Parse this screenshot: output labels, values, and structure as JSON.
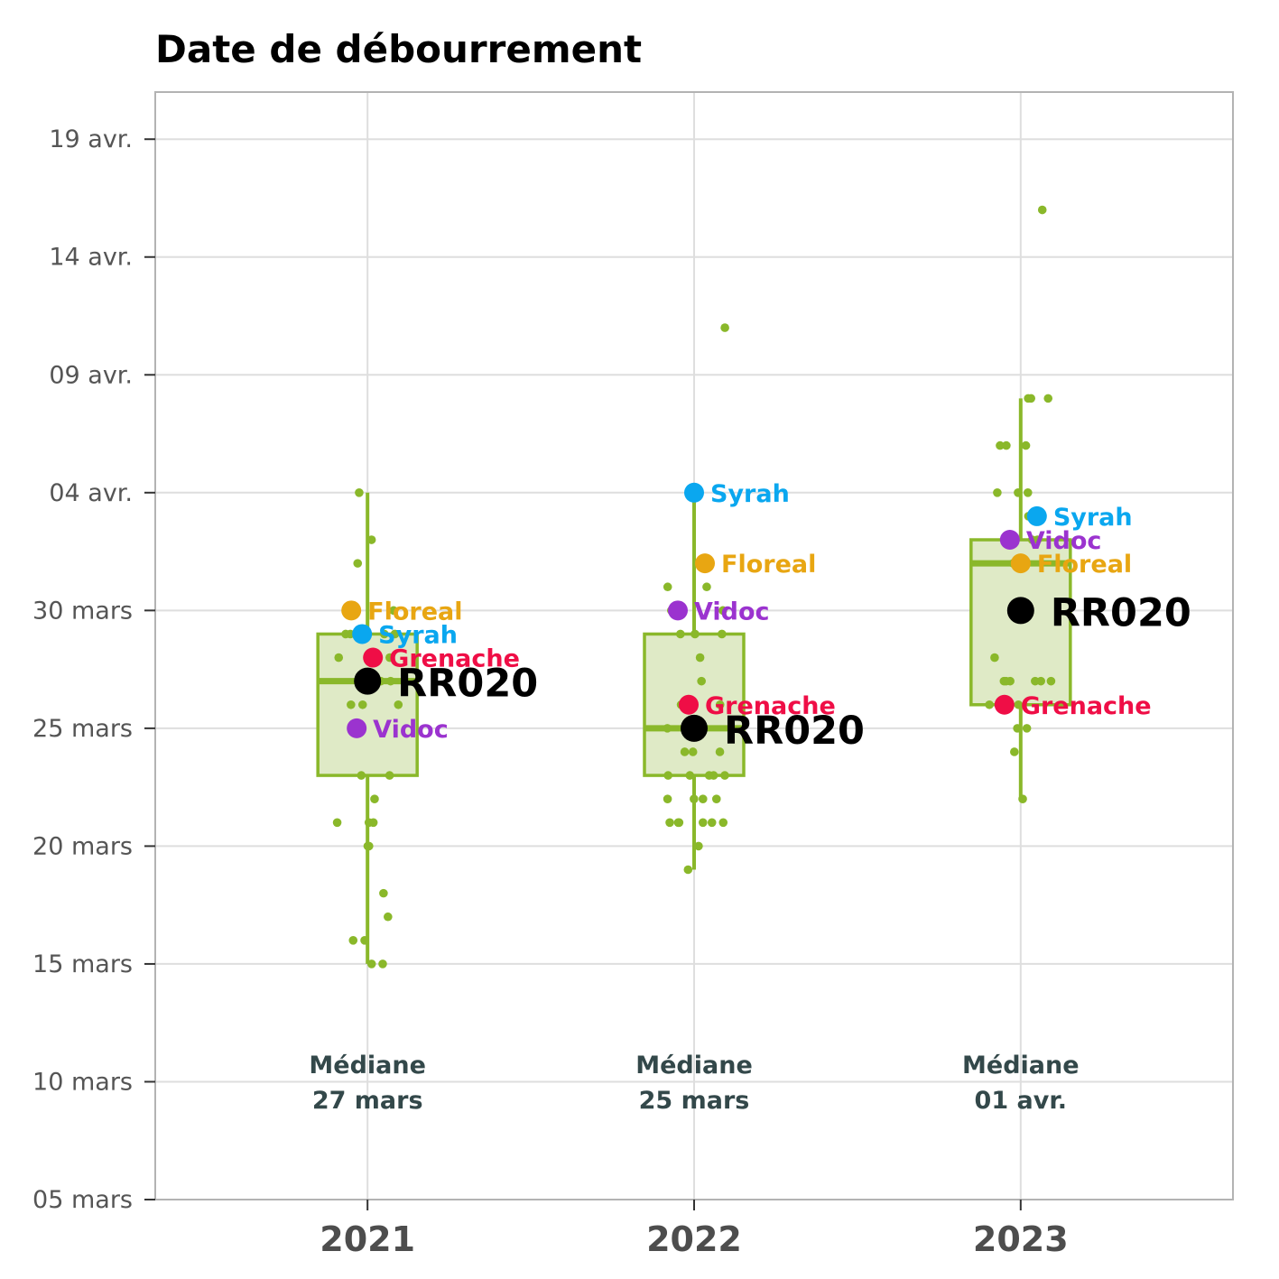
{
  "chart_data": {
    "type": "box",
    "title": "Date de débourrement",
    "xlabel": "",
    "ylabel": "",
    "categories": [
      "2021",
      "2022",
      "2023"
    ],
    "y_ticks": [
      {
        "value": "2000-03-05",
        "label": "05 mars"
      },
      {
        "value": "2000-03-10",
        "label": "10 mars"
      },
      {
        "value": "2000-03-15",
        "label": "15 mars"
      },
      {
        "value": "2000-03-20",
        "label": "20 mars"
      },
      {
        "value": "2000-03-25",
        "label": "25 mars"
      },
      {
        "value": "2000-03-30",
        "label": "30 mars"
      },
      {
        "value": "2000-04-04",
        "label": "04 avr."
      },
      {
        "value": "2000-04-09",
        "label": "09 avr."
      },
      {
        "value": "2000-04-14",
        "label": "14 avr."
      },
      {
        "value": "2000-04-19",
        "label": "19 avr."
      }
    ],
    "ylim": [
      "2000-03-05",
      "2000-04-21"
    ],
    "grid": true,
    "colors": {
      "box": "#8ab82a",
      "box_fill": "#dfeac6",
      "points": "#8ab82a",
      "Floreal": "#e8a612",
      "Syrah": "#0aa7ef",
      "Grenache": "#ef0e46",
      "Vidoc": "#9b33cf",
      "RR020": "#000000",
      "median_text": "#33484a"
    },
    "boxes": [
      {
        "category": "2021",
        "whisker_low": "2000-03-15",
        "q1": "2000-03-23",
        "median": "2000-03-27",
        "q3": "2000-03-29",
        "whisker_high": "2000-04-04"
      },
      {
        "category": "2022",
        "whisker_low": "2000-03-19",
        "q1": "2000-03-23",
        "median": "2000-03-25",
        "q3": "2000-03-29",
        "whisker_high": "2000-04-04"
      },
      {
        "category": "2023",
        "whisker_low": "2000-03-22",
        "q1": "2000-03-26",
        "median": "2000-04-01",
        "q3": "2000-04-02",
        "whisker_high": "2000-04-08"
      }
    ],
    "medians": [
      {
        "category": "2021",
        "label": "Médiane",
        "value": "27 mars"
      },
      {
        "category": "2022",
        "label": "Médiane",
        "value": "25 mars"
      },
      {
        "category": "2023",
        "label": "Médiane",
        "value": "01 avr."
      }
    ],
    "points": [
      {
        "category": "2021",
        "dates": [
          "2000-03-15",
          "2000-03-15",
          "2000-03-16",
          "2000-03-16",
          "2000-03-17",
          "2000-03-18",
          "2000-03-20",
          "2000-03-20",
          "2000-03-21",
          "2000-03-21",
          "2000-03-21",
          "2000-03-22",
          "2000-03-23",
          "2000-03-23",
          "2000-03-25",
          "2000-03-26",
          "2000-03-26",
          "2000-03-26",
          "2000-03-27",
          "2000-03-27",
          "2000-03-28",
          "2000-03-28",
          "2000-03-28",
          "2000-03-29",
          "2000-03-29",
          "2000-03-29",
          "2000-03-29",
          "2000-03-30",
          "2000-03-30",
          "2000-04-01",
          "2000-04-02",
          "2000-04-04"
        ]
      },
      {
        "category": "2022",
        "dates": [
          "2000-03-19",
          "2000-03-20",
          "2000-03-21",
          "2000-03-21",
          "2000-03-21",
          "2000-03-21",
          "2000-03-21",
          "2000-03-21",
          "2000-03-22",
          "2000-03-22",
          "2000-03-22",
          "2000-03-22",
          "2000-03-23",
          "2000-03-23",
          "2000-03-23",
          "2000-03-23",
          "2000-03-23",
          "2000-03-24",
          "2000-03-24",
          "2000-03-24",
          "2000-03-25",
          "2000-03-25",
          "2000-03-26",
          "2000-03-26",
          "2000-03-26",
          "2000-03-27",
          "2000-03-28",
          "2000-03-29",
          "2000-03-29",
          "2000-03-29",
          "2000-03-30",
          "2000-03-30",
          "2000-03-31",
          "2000-03-31",
          "2000-04-11"
        ]
      },
      {
        "category": "2023",
        "dates": [
          "2000-03-22",
          "2000-03-24",
          "2000-03-25",
          "2000-03-25",
          "2000-03-26",
          "2000-03-26",
          "2000-03-27",
          "2000-03-27",
          "2000-03-27",
          "2000-03-27",
          "2000-03-27",
          "2000-03-27",
          "2000-03-28",
          "2000-04-01",
          "2000-04-01",
          "2000-04-02",
          "2000-04-02",
          "2000-04-03",
          "2000-04-04",
          "2000-04-04",
          "2000-04-04",
          "2000-04-06",
          "2000-04-06",
          "2000-04-06",
          "2000-04-08",
          "2000-04-08",
          "2000-04-08",
          "2000-04-16"
        ]
      }
    ],
    "highlights": [
      {
        "category": "2021",
        "name": "Floreal",
        "date": "2000-03-30"
      },
      {
        "category": "2021",
        "name": "Syrah",
        "date": "2000-03-29"
      },
      {
        "category": "2021",
        "name": "Grenache",
        "date": "2000-03-28"
      },
      {
        "category": "2021",
        "name": "RR020",
        "date": "2000-03-27"
      },
      {
        "category": "2021",
        "name": "Vidoc",
        "date": "2000-03-25"
      },
      {
        "category": "2022",
        "name": "Syrah",
        "date": "2000-04-04"
      },
      {
        "category": "2022",
        "name": "Floreal",
        "date": "2000-04-01"
      },
      {
        "category": "2022",
        "name": "Vidoc",
        "date": "2000-03-30"
      },
      {
        "category": "2022",
        "name": "Grenache",
        "date": "2000-03-26"
      },
      {
        "category": "2022",
        "name": "RR020",
        "date": "2000-03-25"
      },
      {
        "category": "2023",
        "name": "Syrah",
        "date": "2000-04-03"
      },
      {
        "category": "2023",
        "name": "Vidoc",
        "date": "2000-04-02"
      },
      {
        "category": "2023",
        "name": "Floreal",
        "date": "2000-04-01"
      },
      {
        "category": "2023",
        "name": "RR020",
        "date": "2000-03-30"
      },
      {
        "category": "2023",
        "name": "Grenache",
        "date": "2000-03-26"
      }
    ]
  }
}
